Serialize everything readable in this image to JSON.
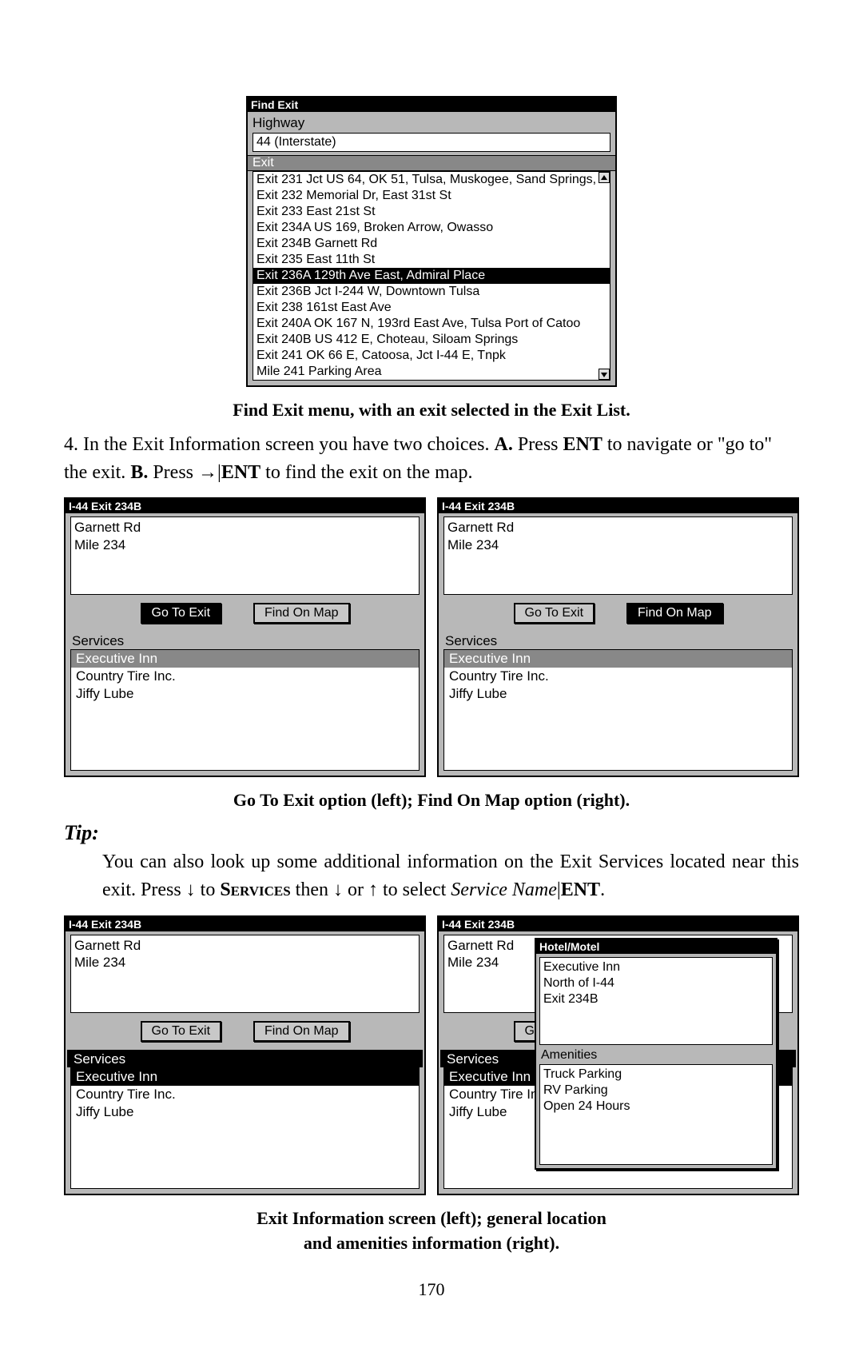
{
  "findExit": {
    "title": "Find Exit",
    "highwayLabel": "Highway",
    "highwayValue": "44 (Interstate)",
    "exitLabel": "Exit",
    "items": [
      "Exit 231 Jct US 64, OK 51, Tulsa, Muskogee, Sand Springs,",
      "Exit 232 Memorial Dr, East 31st St",
      "Exit 233 East 21st St",
      "Exit 234A US 169, Broken Arrow, Owasso",
      "Exit 234B Garnett Rd",
      "Exit 235 East 11th St",
      "Exit 236A 129th Ave East, Admiral Place",
      "Exit 236B Jct I-244 W, Downtown Tulsa",
      "Exit 238 161st East Ave",
      "Exit 240A OK 167 N, 193rd East Ave, Tulsa Port of Catoo",
      "Exit 240B US 412 E, Choteau, Siloam Springs",
      "Exit 241 OK 66 E, Catoosa, Jct I-44 E, Tnpk",
      "Mile 241 Parking Area"
    ],
    "selectedIndex": 6
  },
  "caption1": "Find Exit menu, with an exit selected in the Exit List.",
  "step4": {
    "prefix": "4. In the Exit Information screen you have two choices. ",
    "a": "A.",
    "aText": " Press ",
    "ent": "ENT",
    "aText2": " to navigate or \"go to\" the exit. ",
    "b": "B.",
    "bText": " Press →|",
    "bText2": " to find the exit on the map."
  },
  "exitPanel": {
    "title": "I-44 Exit 234B",
    "line1": "Garnett Rd",
    "line2": "Mile 234",
    "btnGoTo": "Go To Exit",
    "btnFind": "Find On Map",
    "servicesLabel": "Services",
    "services": [
      "Executive Inn",
      "Country Tire Inc.",
      "Jiffy Lube"
    ]
  },
  "caption2": "Go To Exit option (left); Find On Map option (right).",
  "tip": {
    "heading": "Tip:",
    "body1": "You can also look up some additional information on the Exit Services located near this exit. Press ↓ to ",
    "services": "Services",
    "body2": " then ↓ or ↑ to select ",
    "serviceName": "Service Name",
    "pipe": "|",
    "ent": "ENT",
    "period": "."
  },
  "hotelPopup": {
    "title": "Hotel/Motel",
    "lines": [
      "Executive Inn",
      "North of I-44",
      "Exit 234B"
    ],
    "amenitiesLabel": "Amenities",
    "amenities": [
      "Truck Parking",
      "RV Parking",
      "Open 24 Hours"
    ]
  },
  "caption3a": "Exit Information screen (left); general location",
  "caption3b": "and amenities information (right).",
  "pageNumber": "170"
}
